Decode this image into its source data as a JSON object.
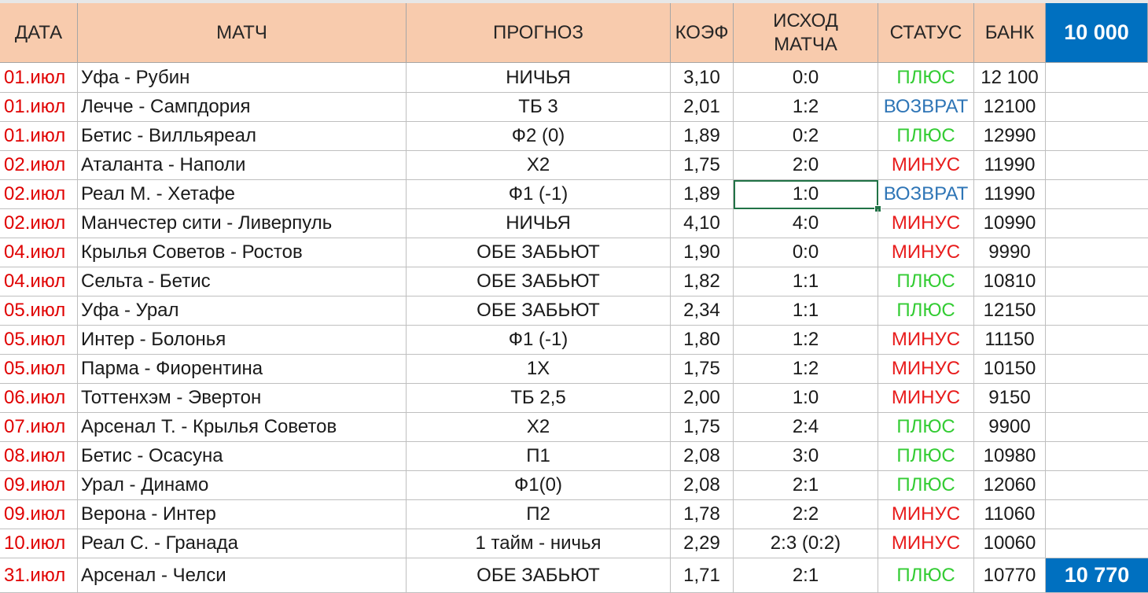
{
  "headers": {
    "date": "ДАТА",
    "match": "МАТЧ",
    "forecast": "ПРОГНОЗ",
    "coef": "КОЭФ",
    "result_line1": "ИСХОД",
    "result_line2": "МАТЧА",
    "status": "СТАТУС",
    "bank": "БАНК",
    "start_bank": "10 000"
  },
  "final_bank": "10 770",
  "colors": {
    "header_bg": "#f8cbad",
    "bank_total_bg": "#0070c0",
    "date_text": "#e00000",
    "plus": "#33cc33",
    "minus": "#e81c1c",
    "return": "#2e75b6"
  },
  "rows": [
    {
      "date": "01.июл",
      "match": "Уфа - Рубин",
      "forecast": "НИЧЬЯ",
      "coef": "3,10",
      "result": "0:0",
      "status": "ПЛЮС",
      "status_type": "plus",
      "bank": "12 100"
    },
    {
      "date": "01.июл",
      "match": "Лечче -  Сампдория",
      "forecast": "ТБ 3",
      "coef": "2,01",
      "result": "1:2",
      "status": "ВОЗВРАТ",
      "status_type": "return",
      "bank": "12100"
    },
    {
      "date": "01.июл",
      "match": "Бетис -  Вилльяреал",
      "forecast": "Ф2 (0)",
      "coef": "1,89",
      "result": "0:2",
      "status": "ПЛЮС",
      "status_type": "plus",
      "bank": "12990"
    },
    {
      "date": "02.июл",
      "match": "Аталанта -  Наполи",
      "forecast": "Х2",
      "coef": "1,75",
      "result": "2:0",
      "status": "МИНУС",
      "status_type": "minus",
      "bank": "11990"
    },
    {
      "date": "02.июл",
      "match": "Реал М. -  Хетафе",
      "forecast": "Ф1 (-1)",
      "coef": "1,89",
      "result": "1:0",
      "status": "ВОЗВРАТ",
      "status_type": "return",
      "bank": "11990"
    },
    {
      "date": "02.июл",
      "match": "Манчестер сити -  Ливерпуль",
      "forecast": "НИЧЬЯ",
      "coef": "4,10",
      "result": "4:0",
      "status": "МИНУС",
      "status_type": "minus",
      "bank": "10990"
    },
    {
      "date": "04.июл",
      "match": "Крылья Советов -  Ростов",
      "forecast": "ОБЕ ЗАБЬЮТ",
      "coef": "1,90",
      "result": "0:0",
      "status": "МИНУС",
      "status_type": "minus",
      "bank": "9990"
    },
    {
      "date": "04.июл",
      "match": "Сельта - Бетис",
      "forecast": "ОБЕ ЗАБЬЮТ",
      "coef": "1,82",
      "result": "1:1",
      "status": "ПЛЮС",
      "status_type": "plus",
      "bank": "10810"
    },
    {
      "date": "05.июл",
      "match": "Уфа - Урал",
      "forecast": "ОБЕ ЗАБЬЮТ",
      "coef": "2,34",
      "result": "1:1",
      "status": "ПЛЮС",
      "status_type": "plus",
      "bank": "12150"
    },
    {
      "date": "05.июл",
      "match": "Интер -  Болонья",
      "forecast": "Ф1 (-1)",
      "coef": "1,80",
      "result": "1:2",
      "status": "МИНУС",
      "status_type": "minus",
      "bank": "11150"
    },
    {
      "date": "05.июл",
      "match": "Парма -  Фиорентина",
      "forecast": "1Х",
      "coef": "1,75",
      "result": "1:2",
      "status": "МИНУС",
      "status_type": "minus",
      "bank": "10150"
    },
    {
      "date": "06.июл",
      "match": "Тоттенхэм -  Эвертон",
      "forecast": "ТБ 2,5",
      "coef": "2,00",
      "result": "1:0",
      "status": "МИНУС",
      "status_type": "minus",
      "bank": "9150"
    },
    {
      "date": "07.июл",
      "match": "Арсенал Т. - Крылья Советов",
      "forecast": "Х2",
      "coef": "1,75",
      "result": "2:4",
      "status": "ПЛЮС",
      "status_type": "plus",
      "bank": "9900"
    },
    {
      "date": "08.июл",
      "match": "Бетис -  Осасуна",
      "forecast": "П1",
      "coef": "2,08",
      "result": "3:0",
      "status": "ПЛЮС",
      "status_type": "plus",
      "bank": "10980"
    },
    {
      "date": "09.июл",
      "match": "Урал - Динамо",
      "forecast": "Ф1(0)",
      "coef": "2,08",
      "result": "2:1",
      "status": "ПЛЮС",
      "status_type": "plus",
      "bank": "12060"
    },
    {
      "date": "09.июл",
      "match": "Верона -  Интер",
      "forecast": "П2",
      "coef": "1,78",
      "result": "2:2",
      "status": "МИНУС",
      "status_type": "minus",
      "bank": "11060"
    },
    {
      "date": "10.июл",
      "match": "Реал С. -  Гранада",
      "forecast": "1 тайм  - ничья",
      "coef": "2,29",
      "result": "2:3 (0:2)",
      "status": "МИНУС",
      "status_type": "minus",
      "bank": "10060"
    },
    {
      "date": "31.июл",
      "match": "Арсенал  - Челси",
      "forecast": "ОБЕ ЗАБЬЮТ",
      "coef": "1,71",
      "result": "2:1",
      "status": "ПЛЮС",
      "status_type": "plus",
      "bank": "10770"
    }
  ]
}
